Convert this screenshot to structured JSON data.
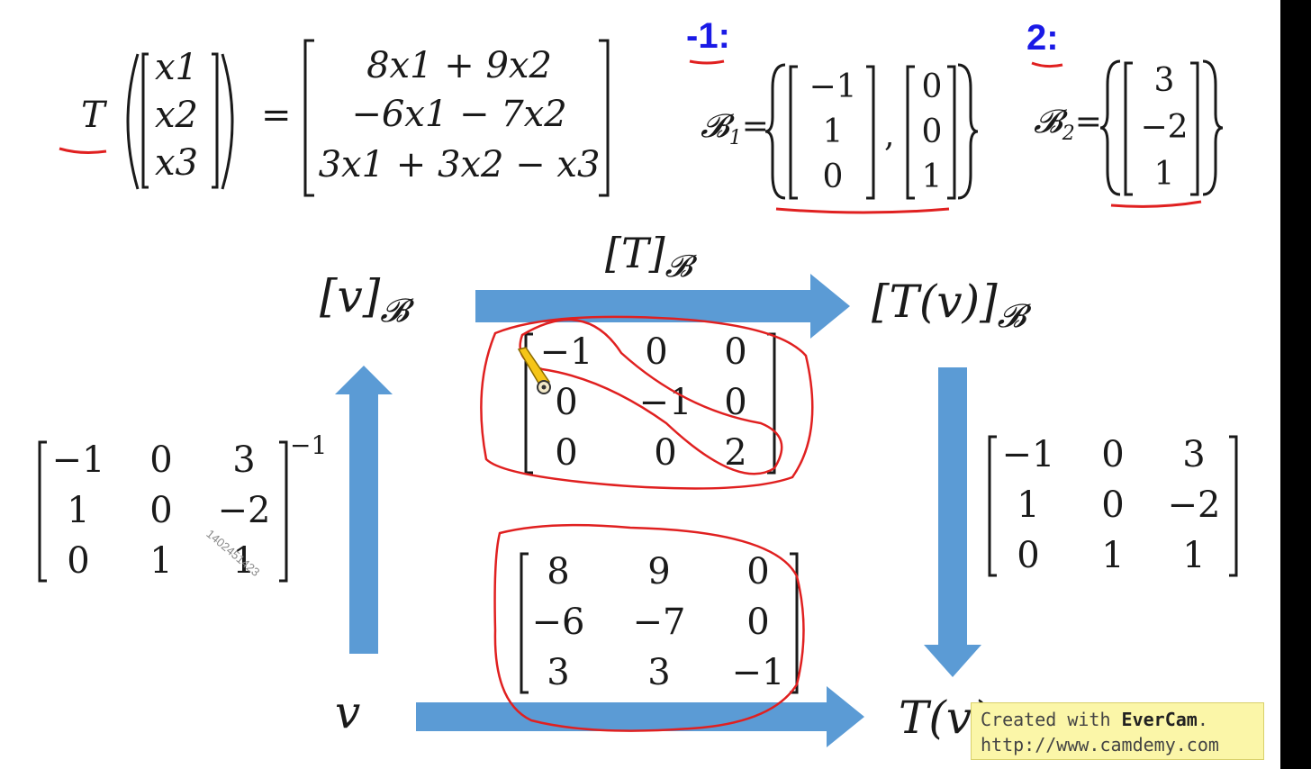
{
  "definition": {
    "T_label": "T",
    "input_entries": [
      "x1",
      "x2",
      "x3"
    ],
    "equals": "=",
    "output_rows": [
      "8x1 + 9x2",
      "−6x1 − 7x2",
      "3x1 + 3x2 − x3"
    ]
  },
  "eigen": [
    {
      "value_label": "-1:",
      "basis_symbol": "𝓑",
      "basis_index": "1",
      "vectors": [
        [
          "−1",
          "1",
          "0"
        ],
        [
          "0",
          "0",
          "1"
        ]
      ]
    },
    {
      "value_label": "2:",
      "basis_symbol": "𝓑",
      "basis_index": "2",
      "vectors": [
        [
          "3",
          "−2",
          "1"
        ]
      ]
    }
  ],
  "diagram": {
    "top_left": "[v]",
    "top_left_sub": "𝓑",
    "top_arrow_label": "[T]",
    "top_arrow_sub": "𝓑",
    "top_right": "[T(v)]",
    "top_right_sub": "𝓑",
    "bottom_left": "v",
    "bottom_right": "T(v)",
    "D_matrix": [
      [
        "−1",
        "0",
        "0"
      ],
      [
        "0",
        "−1",
        "0"
      ],
      [
        "0",
        "0",
        "2"
      ]
    ],
    "A_matrix": [
      [
        "8",
        "9",
        "0"
      ],
      [
        "−6",
        "−7",
        "0"
      ],
      [
        "3",
        "3",
        "−1"
      ]
    ],
    "Pinv_matrix": [
      [
        "−1",
        "0",
        "3"
      ],
      [
        "1",
        "0",
        "−2"
      ],
      [
        "0",
        "1",
        "1"
      ]
    ],
    "Pinv_exponent": "−1",
    "P_matrix": [
      [
        "−1",
        "0",
        "3"
      ],
      [
        "1",
        "0",
        "−2"
      ],
      [
        "0",
        "1",
        "1"
      ]
    ]
  },
  "watermark": {
    "line1_prefix": "Created with ",
    "line1_brand": "EverCam",
    "line1_suffix": ".",
    "line2": "http://www.camdemy.com"
  },
  "id_tag": "1402451423",
  "colors": {
    "arrow": "#5b9bd5",
    "annotation_red": "#e02020",
    "annotation_blue": "#1a1ae6",
    "watermark_bg": "#fbf6a8"
  }
}
